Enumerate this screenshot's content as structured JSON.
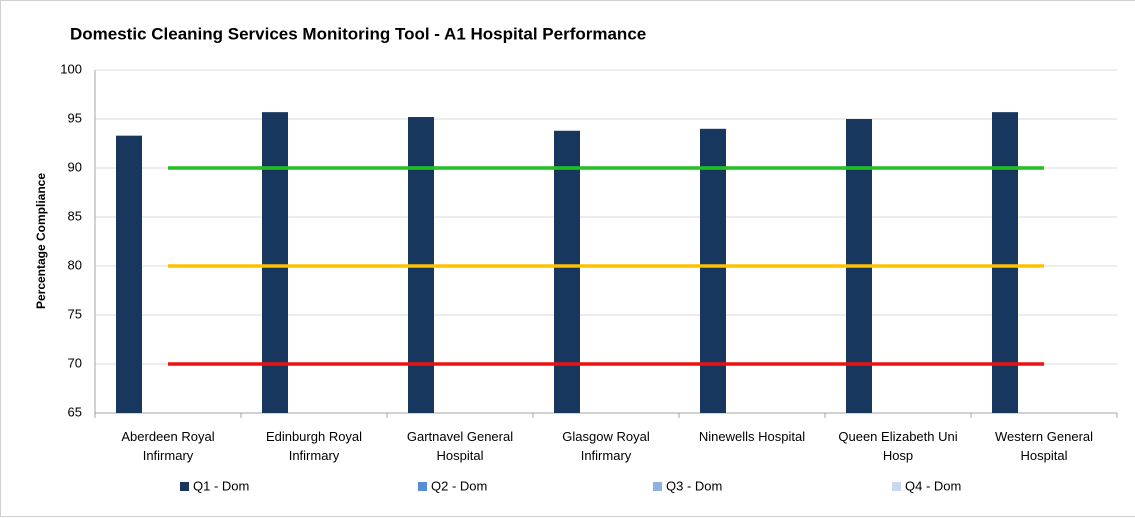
{
  "chart_data": {
    "type": "bar",
    "title": "Domestic Cleaning Services Monitoring Tool - A1 Hospital Performance",
    "y_label": "Percentage Compliance",
    "categories": [
      "Aberdeen Royal Infirmary",
      "Edinburgh Royal Infirmary",
      "Gartnavel General Hospital",
      "Glasgow Royal Infirmary",
      "Ninewells Hospital",
      "Queen Elizabeth Uni Hosp",
      "Western General Hospital"
    ],
    "series": [
      {
        "name": "Q1 - Dom",
        "color": "#17375e",
        "values": [
          93.3,
          95.7,
          95.2,
          93.8,
          94.0,
          95.0,
          95.7
        ]
      },
      {
        "name": "Q2 - Dom",
        "color": "#558ed5",
        "values": [
          null,
          null,
          null,
          null,
          null,
          null,
          null
        ]
      },
      {
        "name": "Q3 - Dom",
        "color": "#8db3e2",
        "values": [
          null,
          null,
          null,
          null,
          null,
          null,
          null
        ]
      },
      {
        "name": "Q4 - Dom",
        "color": "#c6d9f1",
        "values": [
          null,
          null,
          null,
          null,
          null,
          null,
          null
        ]
      }
    ],
    "reference_lines": [
      {
        "value": 90,
        "color": "#22c022"
      },
      {
        "value": 80,
        "color": "#ffc000"
      },
      {
        "value": 70,
        "color": "#ee1111"
      }
    ],
    "ylim": [
      65,
      100
    ],
    "yticks": [
      65,
      70,
      75,
      80,
      85,
      90,
      95,
      100
    ],
    "grid": true,
    "legend": "bottom"
  }
}
